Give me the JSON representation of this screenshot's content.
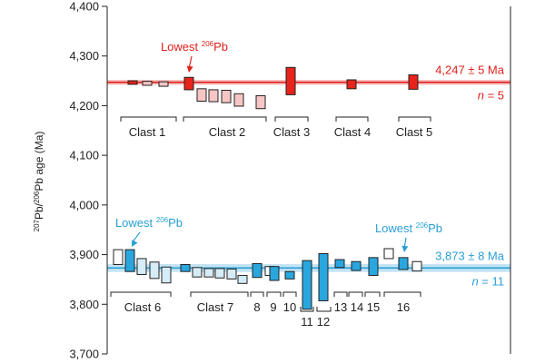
{
  "chart_data": {
    "type": "bar",
    "ylabel": "207Pb/206Pb age (Ma)",
    "ylabel_parts": {
      "sup1": "207",
      "mid1": "Pb/",
      "sup2": "206",
      "rest": "Pb age (Ma)"
    },
    "ylim": [
      3700,
      4400
    ],
    "yticks": [
      3700,
      3800,
      3900,
      4000,
      4100,
      4200,
      4300,
      4400
    ],
    "ytick_labels": [
      "3,700",
      "3,800",
      "3,900",
      "4,000",
      "4,100",
      "4,200",
      "4,300",
      "4,400"
    ],
    "colors": {
      "red_fill": "#e8231b",
      "red_light": "#f7c6c4",
      "blue_fill": "#2aa6de",
      "blue_light": "#d6ecf7",
      "white": "#ffffff",
      "red_line": "#e0201c",
      "blue_line": "#2a9fd6"
    },
    "references": [
      {
        "group": "red",
        "value": 4247,
        "error": 5,
        "label": "4,247 ± 5 Ma",
        "n_label": "n = 5",
        "n_italic": "n",
        "n_rest": " = 5"
      },
      {
        "group": "blue",
        "value": 3873,
        "error": 8,
        "label": "3,873 ± 8 Ma",
        "n_label": "n = 11",
        "n_italic": "n",
        "n_rest": " = 11"
      }
    ],
    "annotations": [
      {
        "group": "red",
        "text": "Lowest 206Pb",
        "pre": "Lowest ",
        "sup": "206",
        "post": "Pb",
        "points_to": "clast2-first"
      },
      {
        "group": "blue",
        "text": "Lowest 206Pb",
        "pre": "Lowest ",
        "sup": "206",
        "post": "Pb",
        "points_to": "clast6-second"
      },
      {
        "group": "blue",
        "text": "Lowest 206Pb",
        "pre": "Lowest ",
        "sup": "206",
        "post": "Pb",
        "points_to": "clast16-second"
      }
    ],
    "clasts": [
      {
        "label": "Clast 1",
        "group": "red",
        "labelRow": 1,
        "bars": [
          {
            "low": 4243,
            "high": 4250,
            "style": "red_fill"
          },
          {
            "low": 4241,
            "high": 4249,
            "style": "red_light"
          },
          {
            "low": 4239,
            "high": 4248,
            "style": "red_light"
          }
        ]
      },
      {
        "label": "Clast 2",
        "group": "red",
        "labelRow": 1,
        "bars": [
          {
            "low": 4232,
            "high": 4257,
            "style": "red_fill"
          },
          {
            "low": 4209,
            "high": 4234,
            "style": "red_light"
          },
          {
            "low": 4208,
            "high": 4232,
            "style": "red_light"
          },
          {
            "low": 4206,
            "high": 4231,
            "style": "red_light"
          },
          {
            "low": 4199,
            "high": 4224,
            "style": "red_light"
          },
          {
            "low": 4194,
            "high": 4220,
            "style": "red_light"
          }
        ]
      },
      {
        "label": "Clast 3",
        "group": "red",
        "labelRow": 1,
        "bars": [
          {
            "low": 4222,
            "high": 4277,
            "style": "red_fill"
          }
        ]
      },
      {
        "label": "Clast 4",
        "group": "red",
        "labelRow": 1,
        "bars": [
          {
            "low": 4234,
            "high": 4252,
            "style": "red_fill"
          }
        ]
      },
      {
        "label": "Clast 5",
        "group": "red",
        "labelRow": 1,
        "bars": [
          {
            "low": 4233,
            "high": 4262,
            "style": "red_fill"
          }
        ]
      },
      {
        "label": "Clast 6",
        "group": "blue",
        "labelRow": 1,
        "bars": [
          {
            "low": 3880,
            "high": 3910,
            "style": "white"
          },
          {
            "low": 3866,
            "high": 3910,
            "style": "blue_fill"
          },
          {
            "low": 3860,
            "high": 3892,
            "style": "blue_light"
          },
          {
            "low": 3852,
            "high": 3885,
            "style": "blue_light"
          },
          {
            "low": 3843,
            "high": 3875,
            "style": "blue_light"
          }
        ]
      },
      {
        "label": "Clast 7",
        "group": "blue",
        "labelRow": 1,
        "bars": [
          {
            "low": 3866,
            "high": 3880,
            "style": "blue_fill"
          },
          {
            "low": 3855,
            "high": 3874,
            "style": "blue_light"
          },
          {
            "low": 3855,
            "high": 3872,
            "style": "blue_light"
          },
          {
            "low": 3853,
            "high": 3872,
            "style": "blue_light"
          },
          {
            "low": 3851,
            "high": 3871,
            "style": "blue_light"
          },
          {
            "low": 3842,
            "high": 3858,
            "style": "blue_light"
          }
        ]
      },
      {
        "label": "8",
        "group": "blue",
        "labelRow": 1,
        "bars": [
          {
            "low": 3854,
            "high": 3882,
            "style": "blue_fill"
          },
          {
            "low": 3858,
            "high": 3876,
            "style": "white"
          }
        ]
      },
      {
        "label": "9",
        "group": "blue",
        "labelRow": 1,
        "bars": [
          {
            "low": 3848,
            "high": 3876,
            "style": "blue_fill"
          }
        ]
      },
      {
        "label": "10",
        "group": "blue",
        "labelRow": 1,
        "bars": [
          {
            "low": 3851,
            "high": 3866,
            "style": "blue_fill"
          }
        ]
      },
      {
        "label": "11",
        "group": "blue",
        "labelRow": 2,
        "bars": [
          {
            "low": 3790,
            "high": 3888,
            "style": "blue_fill"
          }
        ]
      },
      {
        "label": "12",
        "group": "blue",
        "labelRow": 2,
        "bars": [
          {
            "low": 3807,
            "high": 3902,
            "style": "blue_fill"
          }
        ]
      },
      {
        "label": "13",
        "group": "blue",
        "labelRow": 1,
        "bars": [
          {
            "low": 3874,
            "high": 3890,
            "style": "blue_fill"
          }
        ]
      },
      {
        "label": "14",
        "group": "blue",
        "labelRow": 1,
        "bars": [
          {
            "low": 3868,
            "high": 3886,
            "style": "blue_fill"
          }
        ]
      },
      {
        "label": "15",
        "group": "blue",
        "labelRow": 1,
        "bars": [
          {
            "low": 3858,
            "high": 3894,
            "style": "blue_fill"
          }
        ]
      },
      {
        "label": "16",
        "group": "blue",
        "labelRow": 1,
        "bars": [
          {
            "low": 3892,
            "high": 3912,
            "style": "white"
          },
          {
            "low": 3870,
            "high": 3894,
            "style": "blue_fill"
          },
          {
            "low": 3867,
            "high": 3886,
            "style": "white"
          }
        ]
      }
    ]
  }
}
